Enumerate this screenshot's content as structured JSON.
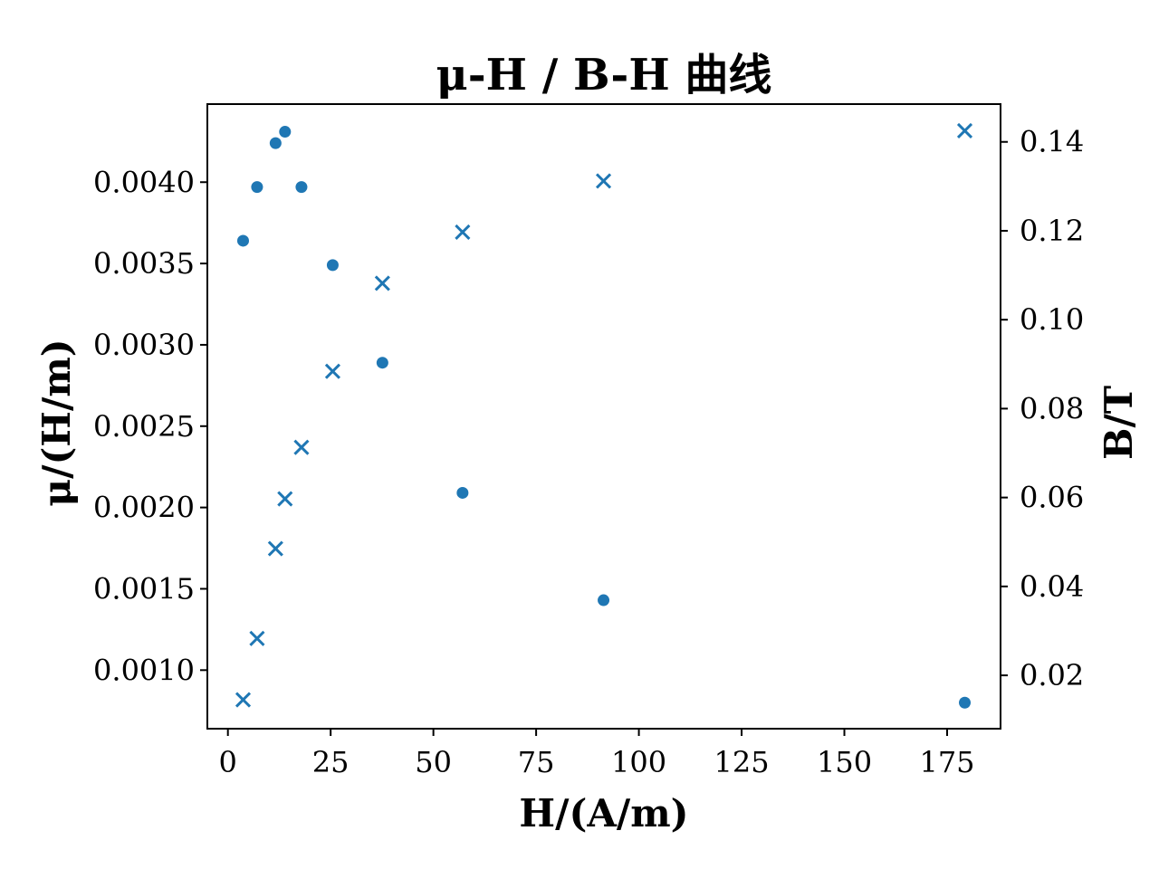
{
  "chart_data": {
    "type": "scatter",
    "title": "μ-H / B-H 曲线",
    "xlabel": "H/(A/m)",
    "ylabel_left": "μ/(H/m)",
    "ylabel_right": "B/T",
    "xlim": [
      -5,
      188
    ],
    "ylim_left": [
      0.00064,
      0.00448
    ],
    "ylim_right": [
      0.008,
      0.1485
    ],
    "xticks": [
      0,
      25,
      50,
      75,
      100,
      125,
      150,
      175
    ],
    "xtick_labels": [
      "0",
      "25",
      "50",
      "75",
      "100",
      "125",
      "150",
      "175"
    ],
    "yticks_left": [
      0.001,
      0.0015,
      0.002,
      0.0025,
      0.003,
      0.0035,
      0.004
    ],
    "ytick_labels_left": [
      "0.0010",
      "0.0015",
      "0.0020",
      "0.0025",
      "0.0030",
      "0.0035",
      "0.0040"
    ],
    "yticks_right": [
      0.02,
      0.04,
      0.06,
      0.08,
      0.1,
      0.12,
      0.14
    ],
    "ytick_labels_right": [
      "0.02",
      "0.04",
      "0.06",
      "0.08",
      "0.10",
      "0.12",
      "0.14"
    ],
    "grid": false,
    "color": "#1f77b4",
    "series": [
      {
        "axis": "left",
        "marker": "circle",
        "x": [
          3.7,
          7.1,
          11.6,
          13.9,
          17.9,
          25.5,
          37.6,
          57.1,
          91.4,
          179.3
        ],
        "y": [
          0.00364,
          0.00397,
          0.00424,
          0.00431,
          0.00397,
          0.00349,
          0.00289,
          0.00209,
          0.00143,
          0.0008
        ]
      },
      {
        "axis": "right",
        "marker": "x",
        "x": [
          3.7,
          7.1,
          11.6,
          13.9,
          17.9,
          25.5,
          37.6,
          57.1,
          91.4,
          179.3
        ],
        "y": [
          0.0145,
          0.0283,
          0.0485,
          0.0597,
          0.0713,
          0.0884,
          0.1082,
          0.1197,
          0.1312,
          0.1425
        ]
      }
    ]
  }
}
